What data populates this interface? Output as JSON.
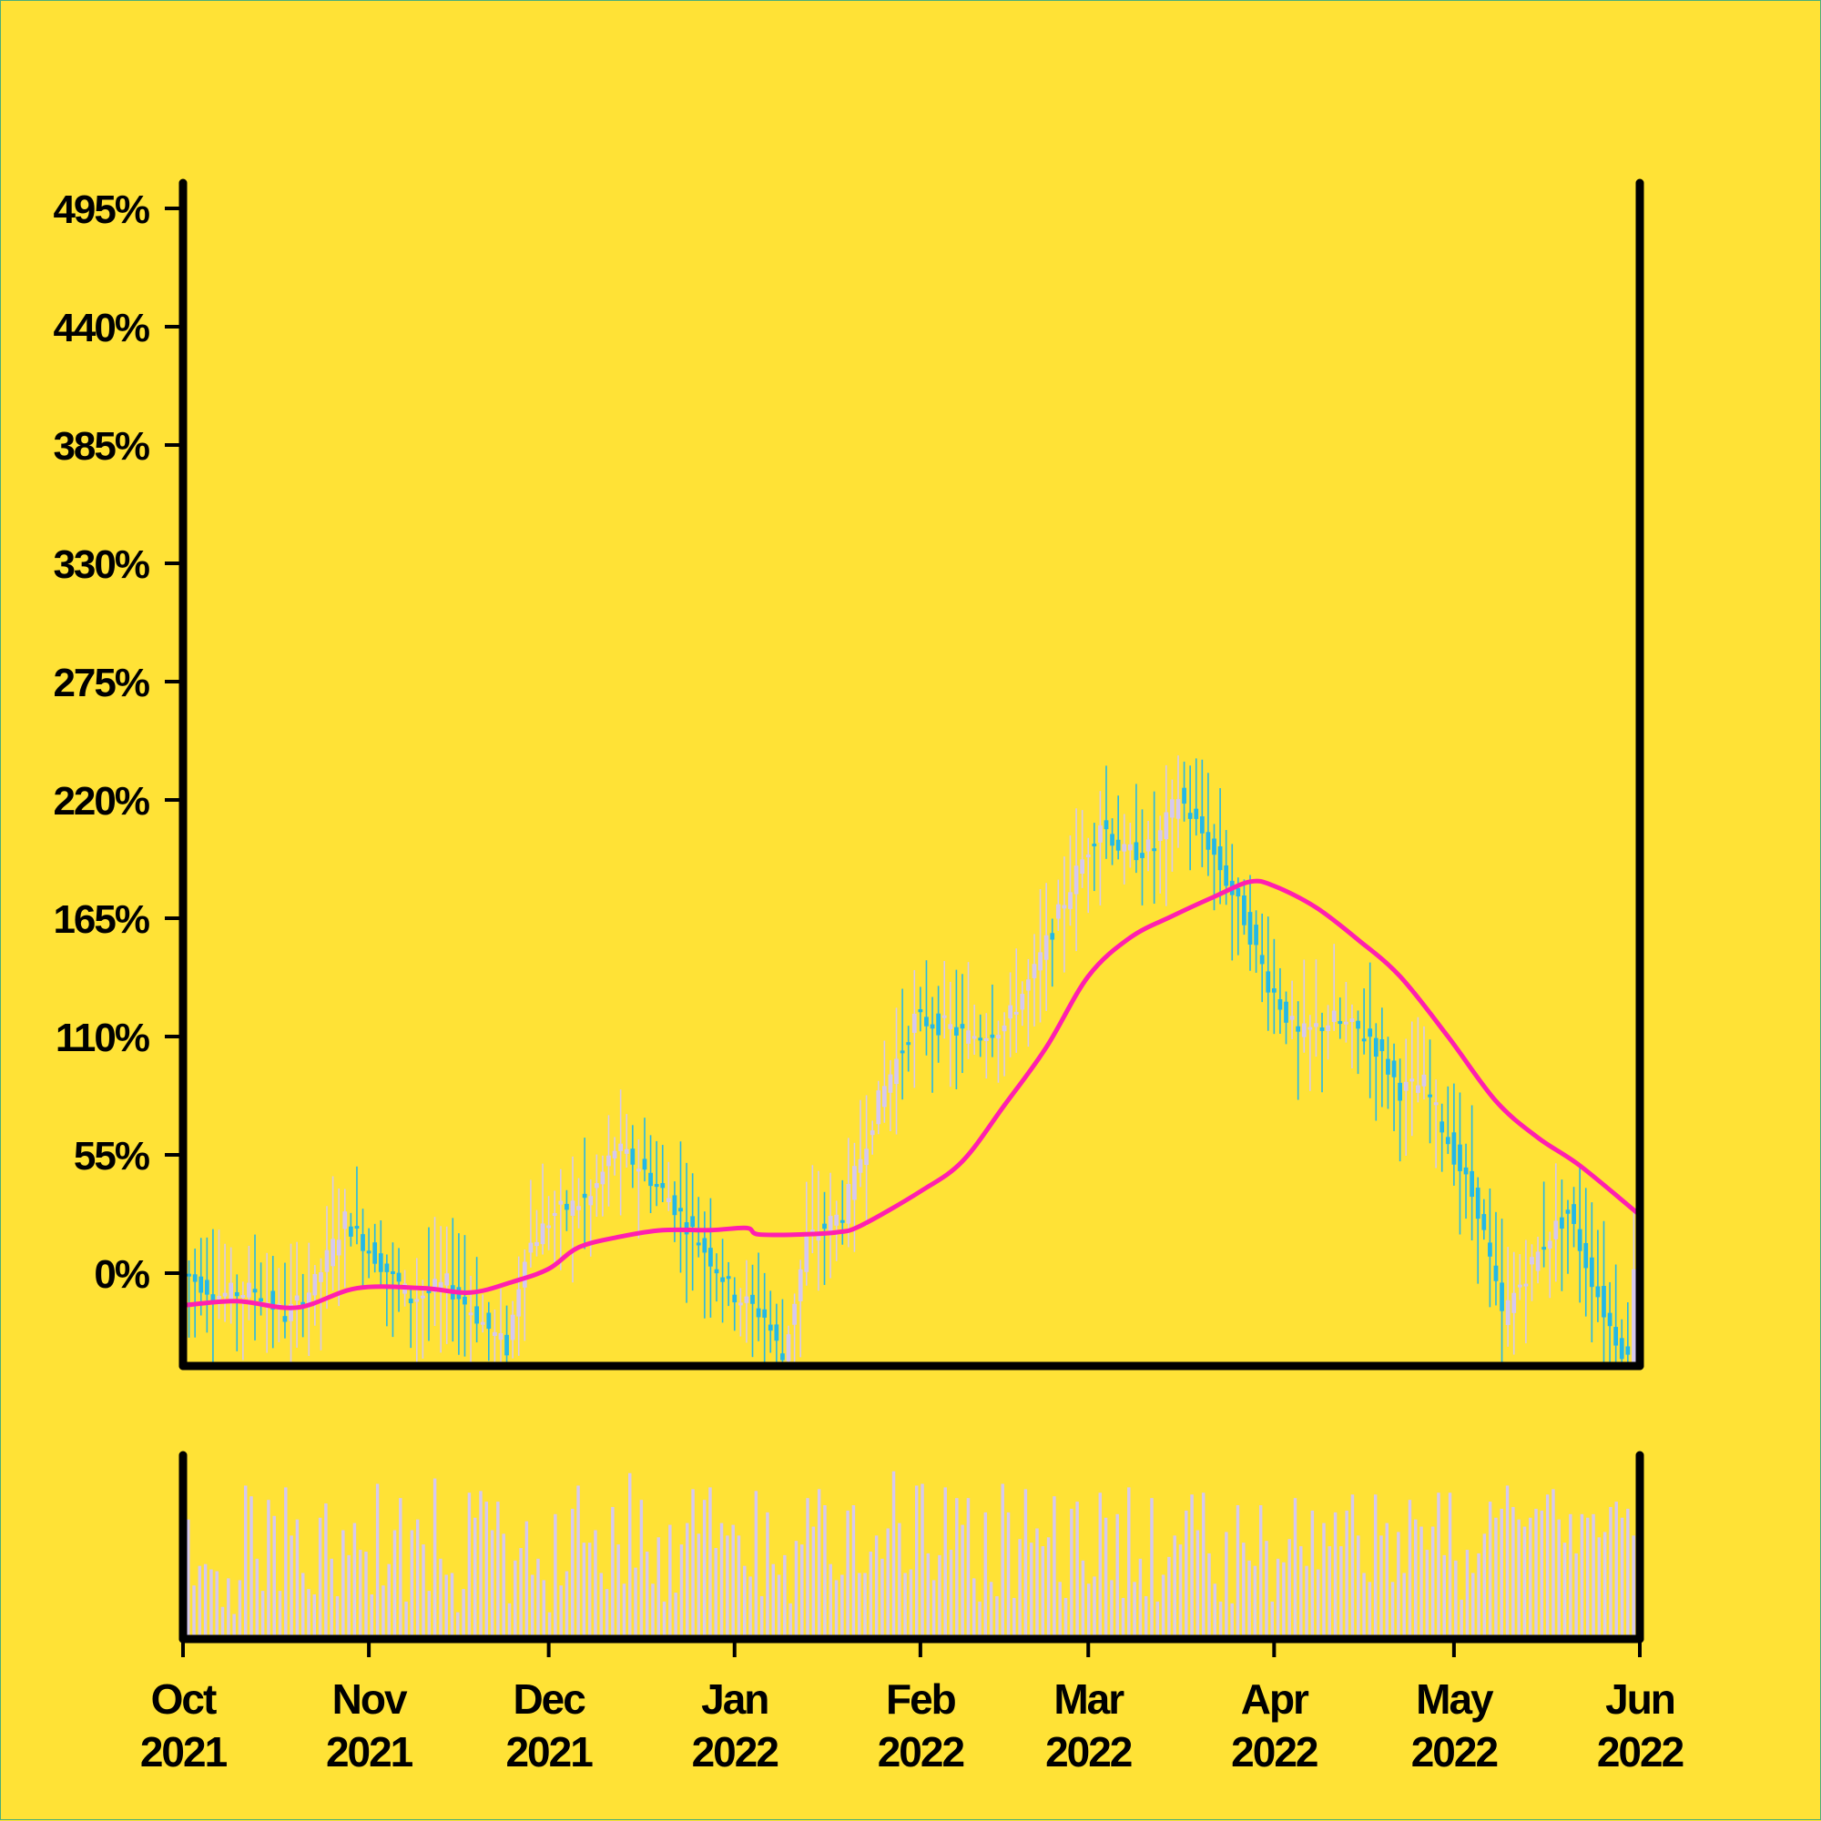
{
  "chart_data": {
    "type": "candlestick",
    "title": "",
    "xlabel": "",
    "ylabel": "",
    "y_format": "percent",
    "ylim": [
      -15,
      510
    ],
    "yticks": [
      0,
      55,
      110,
      165,
      220,
      275,
      330,
      385,
      440,
      495
    ],
    "ytick_labels": [
      "0%",
      "55%",
      "110%",
      "165%",
      "220%",
      "275%",
      "330%",
      "385%",
      "440%",
      "495%"
    ],
    "x_range": [
      "2021-10-01",
      "2022-06-01"
    ],
    "xticks": [
      {
        "date": "2021-10-01",
        "month": "Oct",
        "year": "2021"
      },
      {
        "date": "2021-11-01",
        "month": "Nov",
        "year": "2021"
      },
      {
        "date": "2021-12-01",
        "month": "Dec",
        "year": "2021"
      },
      {
        "date": "2022-01-01",
        "month": "Jan",
        "year": "2022"
      },
      {
        "date": "2022-02-01",
        "month": "Feb",
        "year": "2022"
      },
      {
        "date": "2022-03-01",
        "month": "Mar",
        "year": "2022"
      },
      {
        "date": "2022-04-01",
        "month": "Apr",
        "year": "2022"
      },
      {
        "date": "2022-05-01",
        "month": "May",
        "year": "2022"
      },
      {
        "date": "2022-06-01",
        "month": "Jun",
        "year": "2022"
      }
    ],
    "price_keypoints": [
      {
        "date": "2021-10-01",
        "value": 2
      },
      {
        "date": "2021-10-08",
        "value": -10
      },
      {
        "date": "2021-10-14",
        "value": -8
      },
      {
        "date": "2021-10-19",
        "value": -20
      },
      {
        "date": "2021-10-24",
        "value": -5
      },
      {
        "date": "2021-10-29",
        "value": 25
      },
      {
        "date": "2021-11-03",
        "value": 8
      },
      {
        "date": "2021-11-09",
        "value": -12
      },
      {
        "date": "2021-11-15",
        "value": -5
      },
      {
        "date": "2021-11-20",
        "value": -20
      },
      {
        "date": "2021-11-25",
        "value": -35
      },
      {
        "date": "2021-11-28",
        "value": 10
      },
      {
        "date": "2021-12-03",
        "value": 28
      },
      {
        "date": "2021-12-09",
        "value": 35
      },
      {
        "date": "2021-12-13",
        "value": 58
      },
      {
        "date": "2021-12-17",
        "value": 50
      },
      {
        "date": "2021-12-22",
        "value": 35
      },
      {
        "date": "2021-12-27",
        "value": 15
      },
      {
        "date": "2022-01-02",
        "value": -10
      },
      {
        "date": "2022-01-07",
        "value": -20
      },
      {
        "date": "2022-01-10",
        "value": -40
      },
      {
        "date": "2022-01-14",
        "value": 15
      },
      {
        "date": "2022-01-20",
        "value": 28
      },
      {
        "date": "2022-01-26",
        "value": 80
      },
      {
        "date": "2022-02-01",
        "value": 118
      },
      {
        "date": "2022-02-06",
        "value": 115
      },
      {
        "date": "2022-02-10",
        "value": 110
      },
      {
        "date": "2022-02-16",
        "value": 115
      },
      {
        "date": "2022-02-21",
        "value": 140
      },
      {
        "date": "2022-02-27",
        "value": 180
      },
      {
        "date": "2022-03-04",
        "value": 210
      },
      {
        "date": "2022-03-08",
        "value": 195
      },
      {
        "date": "2022-03-13",
        "value": 198
      },
      {
        "date": "2022-03-17",
        "value": 222
      },
      {
        "date": "2022-03-22",
        "value": 200
      },
      {
        "date": "2022-03-28",
        "value": 165
      },
      {
        "date": "2022-04-01",
        "value": 135
      },
      {
        "date": "2022-04-06",
        "value": 110
      },
      {
        "date": "2022-04-12",
        "value": 118
      },
      {
        "date": "2022-04-18",
        "value": 110
      },
      {
        "date": "2022-04-23",
        "value": 85
      },
      {
        "date": "2022-04-27",
        "value": 88
      },
      {
        "date": "2022-05-02",
        "value": 55
      },
      {
        "date": "2022-05-06",
        "value": 30
      },
      {
        "date": "2022-05-10",
        "value": -20
      },
      {
        "date": "2022-05-14",
        "value": 0
      },
      {
        "date": "2022-05-18",
        "value": 18
      },
      {
        "date": "2022-05-21",
        "value": 28
      },
      {
        "date": "2022-05-24",
        "value": 5
      },
      {
        "date": "2022-05-28",
        "value": -25
      },
      {
        "date": "2022-05-31",
        "value": -40
      },
      {
        "date": "2022-06-01",
        "value": 5
      }
    ],
    "moving_average": [
      {
        "date": "2021-10-01",
        "value": -15
      },
      {
        "date": "2021-10-10",
        "value": -13
      },
      {
        "date": "2021-10-20",
        "value": -16
      },
      {
        "date": "2021-10-30",
        "value": -7
      },
      {
        "date": "2021-11-10",
        "value": -7
      },
      {
        "date": "2021-11-18",
        "value": -9
      },
      {
        "date": "2021-11-25",
        "value": -4
      },
      {
        "date": "2021-12-01",
        "value": 2
      },
      {
        "date": "2021-12-06",
        "value": 12
      },
      {
        "date": "2021-12-13",
        "value": 17
      },
      {
        "date": "2021-12-20",
        "value": 20
      },
      {
        "date": "2021-12-28",
        "value": 20
      },
      {
        "date": "2022-01-03",
        "value": 21
      },
      {
        "date": "2022-01-05",
        "value": 18
      },
      {
        "date": "2022-01-12",
        "value": 18
      },
      {
        "date": "2022-01-18",
        "value": 19
      },
      {
        "date": "2022-01-22",
        "value": 22
      },
      {
        "date": "2022-02-01",
        "value": 38
      },
      {
        "date": "2022-02-08",
        "value": 52
      },
      {
        "date": "2022-02-15",
        "value": 78
      },
      {
        "date": "2022-02-22",
        "value": 105
      },
      {
        "date": "2022-03-01",
        "value": 138
      },
      {
        "date": "2022-03-08",
        "value": 156
      },
      {
        "date": "2022-03-15",
        "value": 166
      },
      {
        "date": "2022-03-22",
        "value": 175
      },
      {
        "date": "2022-03-28",
        "value": 182
      },
      {
        "date": "2022-04-01",
        "value": 180
      },
      {
        "date": "2022-04-08",
        "value": 170
      },
      {
        "date": "2022-04-15",
        "value": 155
      },
      {
        "date": "2022-04-22",
        "value": 138
      },
      {
        "date": "2022-04-30",
        "value": 110
      },
      {
        "date": "2022-05-08",
        "value": 80
      },
      {
        "date": "2022-05-15",
        "value": 63
      },
      {
        "date": "2022-05-22",
        "value": 50
      },
      {
        "date": "2022-06-01",
        "value": 27
      }
    ],
    "volume": {
      "shown_without_axis": true,
      "values_relative": [
        0.67,
        0.3,
        0.41,
        0.42,
        0.39,
        0.38,
        0.18,
        0.34,
        0.14,
        0.33,
        0.86,
        0.8,
        0.45,
        0.27,
        0.78,
        0.69,
        0.27,
        0.85,
        0.58,
        0.67,
        0.37,
        0.28,
        0.25,
        0.68,
        0.76,
        0.45,
        0.24,
        0.61,
        0.47,
        0.65,
        0.5,
        0.49,
        0.25,
        0.87,
        0.3,
        0.42,
        0.61,
        0.79,
        0.21,
        0.61,
        0.67,
        0.53,
        0.27,
        0.9,
        0.45,
        0.36,
        0.37,
        0.15,
        0.28,
        0.82,
        0.68,
        0.83,
        0.77,
        0.61,
        0.77,
        0.59,
        0.2,
        0.44,
        0.51,
        0.66,
        0.36,
        0.45,
        0.33,
        0.15,
        0.7,
        0.3,
        0.38,
        0.73,
        0.86,
        0.54,
        0.54,
        0.61,
        0.37,
        0.28,
        0.74,
        0.53,
        0.31,
        0.93,
        0.4,
        0.78,
        0.49,
        0.31,
        0.57,
        0.21,
        0.64,
        0.26,
        0.53,
        0.65,
        0.84,
        0.59,
        0.78,
        0.85,
        0.51,
        0.65,
        0.58,
        0.64,
        0.58,
        0.41,
        0.35,
        0.83,
        0.24,
        0.71,
        0.42,
        0.36,
        0.47,
        0.2,
        0.55,
        0.53,
        0.79,
        0.63,
        0.84,
        0.75,
        0.42,
        0.33,
        0.36,
        0.72,
        0.75,
        0.37,
        0.37,
        0.49,
        0.58,
        0.45,
        0.62,
        0.94,
        0.65,
        0.37,
        0.39,
        0.86,
        0.87,
        0.48,
        0.33,
        0.47,
        0.85,
        0.5,
        0.79,
        0.64,
        0.79,
        0.34,
        0.21,
        0.71,
        0.32,
        0.24,
        0.87,
        0.71,
        0.23,
        0.56,
        0.84,
        0.54,
        0.62,
        0.52,
        0.57,
        0.8,
        0.32,
        0.23,
        0.73,
        0.77,
        0.44,
        0.31,
        0.35,
        0.82,
        0.68,
        0.33,
        0.7,
        0.23,
        0.85,
        0.32,
        0.45,
        0.24,
        0.79,
        0.21,
        0.36,
        0.46,
        0.58,
        0.53,
        0.72,
        0.81,
        0.61,
        0.82,
        0.48,
        0.31,
        0.21,
        0.6,
        0.2,
        0.75,
        0.54,
        0.44,
        0.41,
        0.75,
        0.55,
        0.21,
        0.45,
        0.43,
        0.56,
        0.79,
        0.52,
        0.41,
        0.72,
        0.39,
        0.65,
        0.52,
        0.71,
        0.52,
        0.72,
        0.81,
        0.58,
        0.37,
        0.32,
        0.81,
        0.58,
        0.65,
        0.32,
        0.6,
        0.37,
        0.78,
        0.67,
        0.63,
        0.5,
        0.63,
        0.82,
        0.47,
        0.82,
        0.44,
        0.22,
        0.5,
        0.37,
        0.48,
        0.59,
        0.77,
        0.68,
        0.73,
        0.86,
        0.74,
        0.67,
        0.63,
        0.68,
        0.73,
        0.72,
        0.81,
        0.84,
        0.67,
        0.54,
        0.7,
        0.48,
        0.7,
        0.68,
        0.7,
        0.57,
        0.6,
        0.74,
        0.77,
        0.68,
        0.73,
        0.58,
        0.58
      ]
    },
    "colors": {
      "background": "#ffe236",
      "candle_up": "#d5c8f0",
      "candle_down": "#22b8e8",
      "moving_average": "#ff1fb0",
      "volume": "#d5c8f0",
      "axis": "#000000"
    },
    "grid": false,
    "legend": "none"
  }
}
